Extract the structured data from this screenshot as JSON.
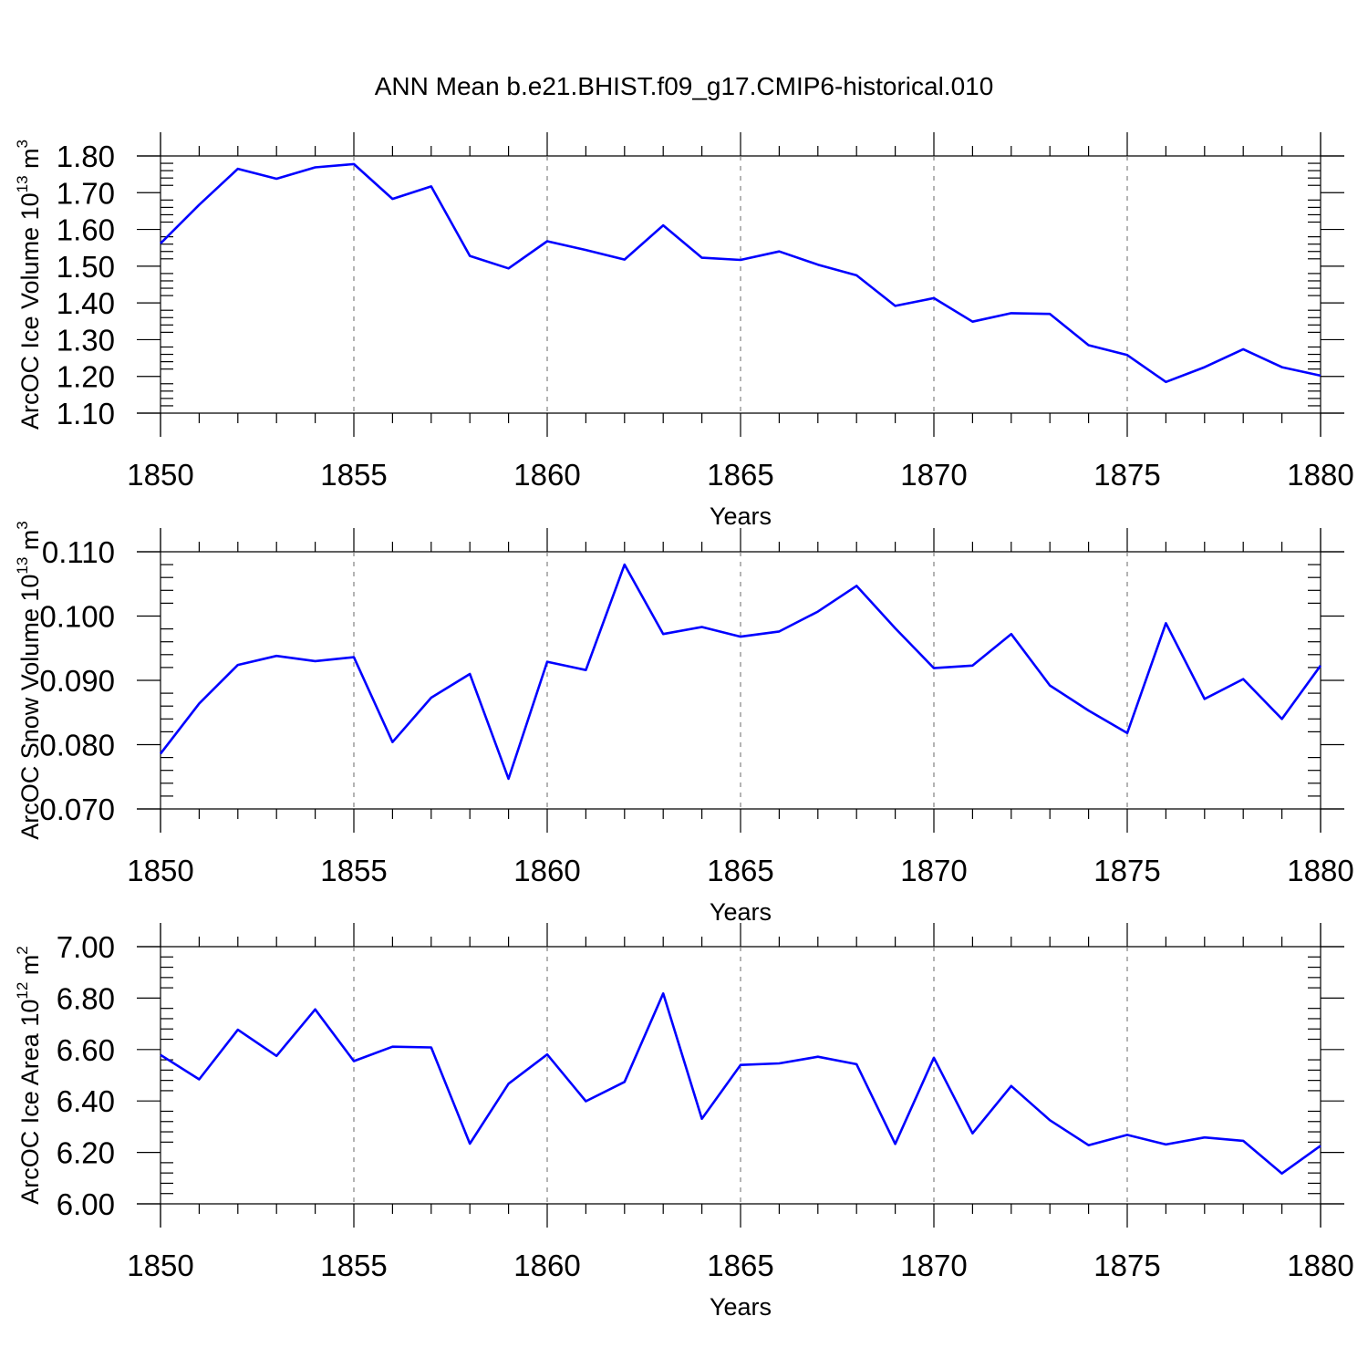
{
  "title": "ANN Mean b.e21.BHIST.f09_g17.CMIP6-historical.010",
  "colors": {
    "series": "#0000ff",
    "axis": "#000000",
    "grid": "#777777"
  },
  "chart_data": [
    {
      "type": "line",
      "xlabel": "Years",
      "ylabel": {
        "main": "ArcOC Ice Volume 10",
        "exp1": "13",
        "unit": " m",
        "exp2": "3"
      },
      "xlim": [
        1850,
        1880
      ],
      "ylim": [
        1.1,
        1.8
      ],
      "xticks": [
        "1850",
        "1855",
        "1860",
        "1865",
        "1870",
        "1875",
        "1880"
      ],
      "yticks": [
        "1.10",
        "1.20",
        "1.30",
        "1.40",
        "1.50",
        "1.60",
        "1.70",
        "1.80"
      ],
      "grid": "dashed vertical at major x ticks",
      "x": [
        1850,
        1851,
        1852,
        1853,
        1854,
        1855,
        1856,
        1857,
        1858,
        1859,
        1860,
        1861,
        1862,
        1863,
        1864,
        1865,
        1866,
        1867,
        1868,
        1869,
        1870,
        1871,
        1872,
        1873,
        1874,
        1875,
        1876,
        1877,
        1878,
        1879,
        1880
      ],
      "values": [
        1.562,
        1.667,
        1.765,
        1.738,
        1.769,
        1.778,
        1.683,
        1.717,
        1.528,
        1.494,
        1.568,
        1.544,
        1.518,
        1.611,
        1.523,
        1.517,
        1.54,
        1.504,
        1.475,
        1.392,
        1.413,
        1.349,
        1.372,
        1.37,
        1.285,
        1.258,
        1.185,
        1.225,
        1.274,
        1.225,
        1.202
      ]
    },
    {
      "type": "line",
      "xlabel": "Years",
      "ylabel": {
        "main": "ArcOC Snow Volume 10",
        "exp1": "13",
        "unit": " m",
        "exp2": "3"
      },
      "xlim": [
        1850,
        1880
      ],
      "ylim": [
        0.07,
        0.11
      ],
      "xticks": [
        "1850",
        "1855",
        "1860",
        "1865",
        "1870",
        "1875",
        "1880"
      ],
      "yticks": [
        "0.070",
        "0.080",
        "0.090",
        "0.100",
        "0.110"
      ],
      "grid": "dashed vertical at major x ticks",
      "x": [
        1850,
        1851,
        1852,
        1853,
        1854,
        1855,
        1856,
        1857,
        1858,
        1859,
        1860,
        1861,
        1862,
        1863,
        1864,
        1865,
        1866,
        1867,
        1868,
        1869,
        1870,
        1871,
        1872,
        1873,
        1874,
        1875,
        1876,
        1877,
        1878,
        1879,
        1880
      ],
      "values": [
        0.0786,
        0.0864,
        0.0924,
        0.0938,
        0.093,
        0.0936,
        0.0804,
        0.0873,
        0.091,
        0.0747,
        0.0929,
        0.0916,
        0.108,
        0.0972,
        0.0983,
        0.0968,
        0.0976,
        0.1007,
        0.1047,
        0.0981,
        0.0919,
        0.0923,
        0.0972,
        0.0892,
        0.0853,
        0.0818,
        0.0989,
        0.0871,
        0.0902,
        0.084,
        0.0923
      ]
    },
    {
      "type": "line",
      "xlabel": "Years",
      "ylabel": {
        "main": "ArcOC Ice Area 10",
        "exp1": "12",
        "unit": " m",
        "exp2": "2"
      },
      "xlim": [
        1850,
        1880
      ],
      "ylim": [
        6.0,
        7.0
      ],
      "xticks": [
        "1850",
        "1855",
        "1860",
        "1865",
        "1870",
        "1875",
        "1880"
      ],
      "yticks": [
        "6.00",
        "6.20",
        "6.40",
        "6.60",
        "6.80",
        "7.00"
      ],
      "grid": "dashed vertical at major x ticks",
      "x": [
        1850,
        1851,
        1852,
        1853,
        1854,
        1855,
        1856,
        1857,
        1858,
        1859,
        1860,
        1861,
        1862,
        1863,
        1864,
        1865,
        1866,
        1867,
        1868,
        1869,
        1870,
        1871,
        1872,
        1873,
        1874,
        1875,
        1876,
        1877,
        1878,
        1879,
        1880
      ],
      "values": [
        6.579,
        6.484,
        6.677,
        6.575,
        6.756,
        6.555,
        6.611,
        6.608,
        6.234,
        6.467,
        6.581,
        6.399,
        6.474,
        6.818,
        6.331,
        6.54,
        6.546,
        6.572,
        6.543,
        6.233,
        6.568,
        6.274,
        6.458,
        6.325,
        6.228,
        6.268,
        6.231,
        6.258,
        6.245,
        6.118,
        6.226
      ]
    }
  ]
}
